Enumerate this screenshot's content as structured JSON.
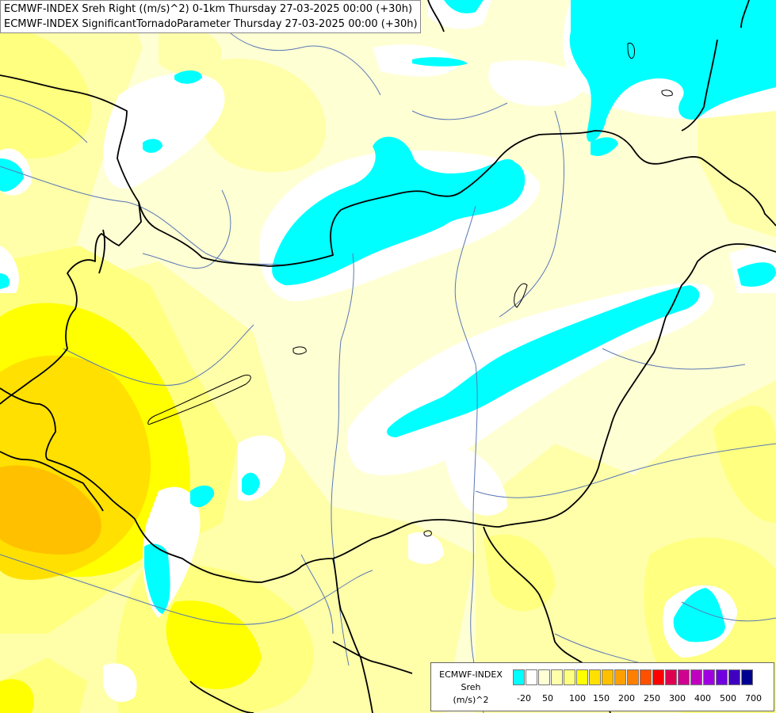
{
  "header": {
    "line1": "ECMWF-INDEX Sreh Right ((m/s)^2) 0-1km Thursday 27-03-2025 00:00 (+30h)",
    "line2": "ECMWF-INDEX SignificantTornadoParameter Thursday 27-03-2025 00:00 (+30h)"
  },
  "legend": {
    "title_line1": "ECMWF-INDEX",
    "title_line2": "Sreh",
    "title_line3": "(m/s)^2",
    "colors": [
      "#00ffff",
      "#ffffff",
      "#ffffd4",
      "#ffffaa",
      "#ffff80",
      "#ffff00",
      "#ffe000",
      "#ffc000",
      "#ffa000",
      "#ff8000",
      "#ff5000",
      "#ff0000",
      "#e00050",
      "#d00090",
      "#c000c0",
      "#a000e0",
      "#7000e0",
      "#4000c0",
      "#000090"
    ],
    "ticks": [
      "-20",
      "50",
      "100",
      "150",
      "200",
      "250",
      "300",
      "400",
      "500",
      "700"
    ]
  },
  "colors": {
    "cyan": "#00ffff",
    "white": "#ffffff",
    "pale_yellow": "#ffffd4",
    "light_yellow": "#ffffaa",
    "yellow": "#ffff80",
    "strong_yellow": "#ffff00",
    "gold": "#ffe000",
    "orange_yellow": "#ffc000",
    "border": "#000000",
    "river": "#5a78b4"
  }
}
